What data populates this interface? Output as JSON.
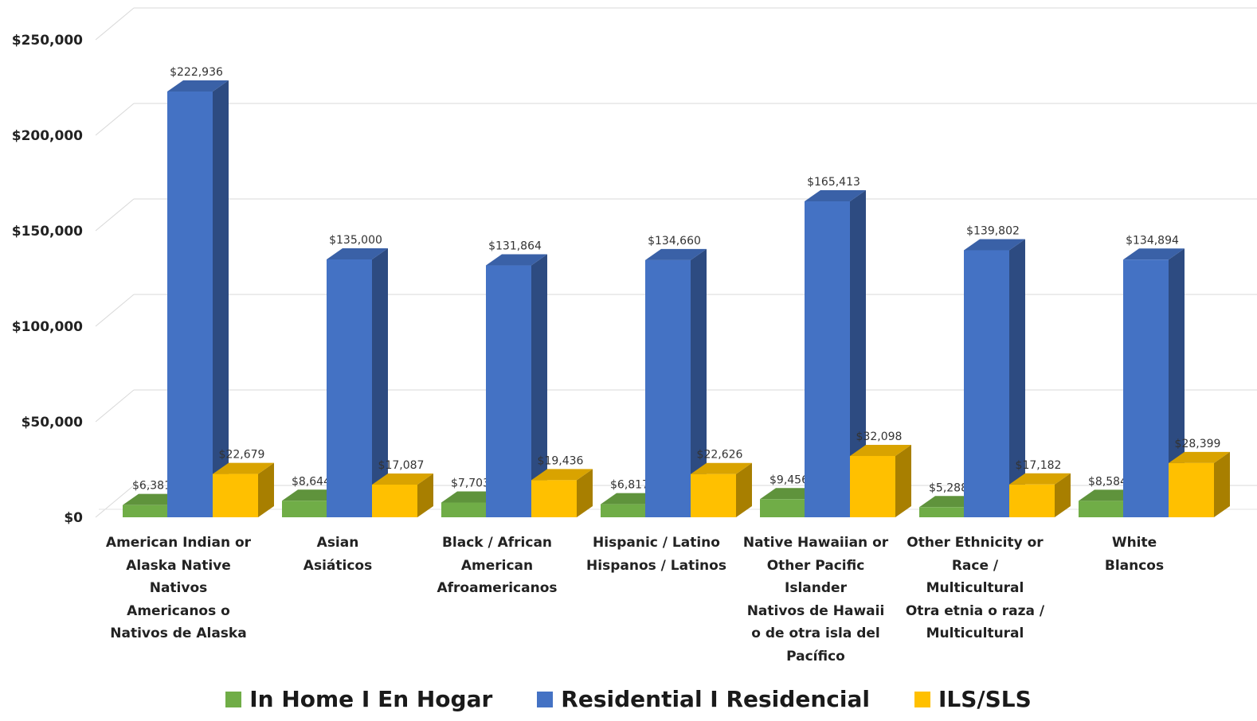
{
  "chart_data": {
    "type": "bar",
    "title": "",
    "xlabel": "",
    "ylabel": "",
    "ylim": [
      0,
      250000
    ],
    "yticks": [
      "$0",
      "$50,000",
      "$100,000",
      "$150,000",
      "$200,000",
      "$250,000"
    ],
    "ytick_values": [
      0,
      50000,
      100000,
      150000,
      200000,
      250000
    ],
    "grid": true,
    "legend_position": "bottom",
    "categories": [
      "American Indian or\nAlaska Native\nNativos\nAmericanos o\nNativos de Alaska",
      "Asian\nAsiáticos",
      "Black / African\nAmerican\nAfroamericanos",
      "Hispanic / Latino\nHispanos / Latinos",
      "Native Hawaiian or\nOther Pacific\nIslander\nNativos de Hawaii\no de otra isla del\nPacífico",
      "Other Ethnicity or\nRace /\nMulticultural\nOtra etnia o raza /\nMulticultural",
      "White\nBlancos"
    ],
    "series": [
      {
        "name": "In Home I En Hogar",
        "color": "#70AD47",
        "values": [
          6381,
          8644,
          7703,
          6817,
          9456,
          5288,
          8584
        ],
        "labels": [
          "$6,381",
          "$8,644",
          "$7,703",
          "$6,817",
          "$9,456",
          "$5,288",
          "$8,584"
        ]
      },
      {
        "name": "Residential I Residencial",
        "color": "#4472C4",
        "values": [
          222936,
          135000,
          131864,
          134660,
          165413,
          139802,
          134894
        ],
        "labels": [
          "$222,936",
          "$135,000",
          "$131,864",
          "$134,660",
          "$165,413",
          "$139,802",
          "$134,894"
        ]
      },
      {
        "name": "ILS/SLS",
        "color": "#FFC000",
        "values": [
          22679,
          17087,
          19436,
          22626,
          32098,
          17182,
          28399
        ],
        "labels": [
          "$22,679",
          "$17,087",
          "$19,436",
          "$22,626",
          "$32,098",
          "$17,182",
          "$28,399"
        ]
      }
    ]
  }
}
